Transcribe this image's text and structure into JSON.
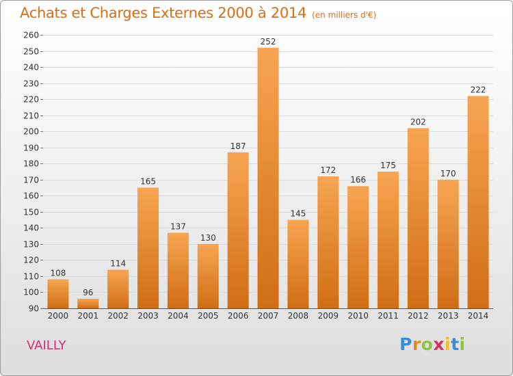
{
  "header": {
    "title": "Achats et Charges Externes 2000 à 2014",
    "unit": "(en milliers d'€)"
  },
  "footer": {
    "commune": "VAILLY",
    "logo_text": "Proxiti",
    "logo_letters": [
      "P",
      "r",
      "o",
      "x",
      "i",
      "t",
      "i"
    ]
  },
  "colors": {
    "title": "#dd6d12",
    "bar_light": "#f7a553",
    "bar_dark": "#d06e14",
    "commune": "#cf2f6c"
  },
  "chart_data": {
    "type": "bar",
    "categories": [
      "2000",
      "2001",
      "2002",
      "2003",
      "2004",
      "2005",
      "2006",
      "2007",
      "2008",
      "2009",
      "2010",
      "2011",
      "2012",
      "2013",
      "2014"
    ],
    "values": [
      108,
      96,
      114,
      165,
      137,
      130,
      187,
      252,
      145,
      172,
      166,
      175,
      202,
      170,
      222
    ],
    "title": "Achats et Charges Externes 2000 à 2014",
    "subtitle": "(en milliers d'€)",
    "xlabel": "",
    "ylabel": "",
    "ylim": [
      90,
      260
    ],
    "yticks": [
      90,
      100,
      110,
      120,
      130,
      140,
      150,
      160,
      170,
      180,
      190,
      200,
      210,
      220,
      230,
      240,
      250,
      260
    ],
    "grid": true,
    "legend": "none"
  }
}
